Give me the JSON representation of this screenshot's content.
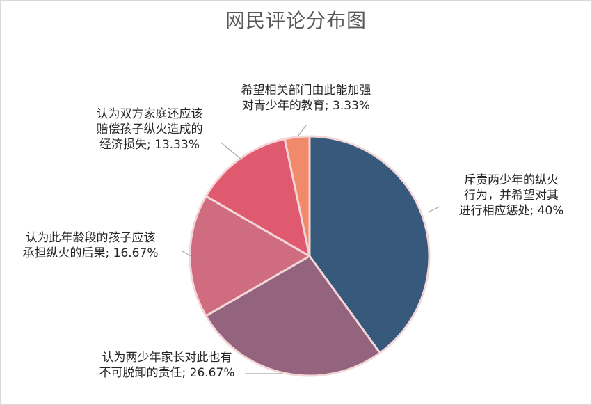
{
  "chart_data": {
    "type": "pie",
    "title": "网民评论分布图",
    "slices": [
      {
        "label_lines": [
          "斥责两少年的纵火",
          "行为，并希望对其",
          "进行相应惩处; 40%"
        ],
        "value": 40,
        "color": "#375a7c"
      },
      {
        "label_lines": [
          "认为两少年家长对此也有",
          "不可脱卸的责任; 26.67%"
        ],
        "value": 26.67,
        "color": "#94647f"
      },
      {
        "label_lines": [
          "认为此年龄段的孩子应该",
          "承担纵火的后果; 16.67%"
        ],
        "value": 16.67,
        "color": "#d06c80"
      },
      {
        "label_lines": [
          "认为双方家庭还应该",
          "赔偿孩子纵火造成的",
          "经济损失; 13.33%"
        ],
        "value": 13.33,
        "color": "#e05a6f"
      },
      {
        "label_lines": [
          "希望相关部门由此能加强",
          "对青少年的教育; 3.33%"
        ],
        "value": 3.33,
        "color": "#f08a6a"
      }
    ]
  }
}
